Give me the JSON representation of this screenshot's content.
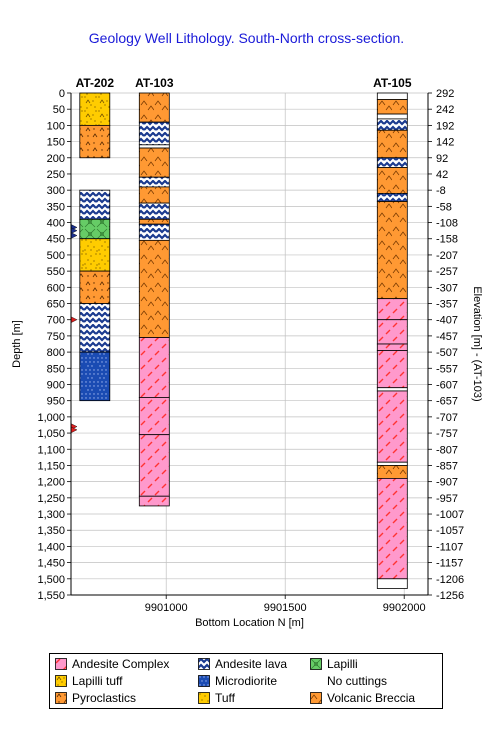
{
  "chart_data": {
    "type": "well-lithology-cross-section",
    "title": "Geology Well Lithology.  South-North cross-section.",
    "xlabel": "Bottom Location N [m]",
    "ylabel_left": "Depth [m]",
    "ylabel_right": "Elevation [m] - (AT-103)",
    "depth_range": [
      0,
      1550
    ],
    "depth_ticks": [
      "0",
      "50",
      "100",
      "150",
      "200",
      "250",
      "300",
      "350",
      "400",
      "450",
      "500",
      "550",
      "600",
      "650",
      "700",
      "750",
      "800",
      "850",
      "900",
      "950",
      "1,000",
      "1,050",
      "1,100",
      "1,150",
      "1,200",
      "1,250",
      "1,300",
      "1,350",
      "1,400",
      "1,450",
      "1,500",
      "1,550"
    ],
    "elevation_ticks": [
      "292",
      "242",
      "192",
      "142",
      "92",
      "42",
      "-8",
      "-58",
      "-108",
      "-158",
      "-207",
      "-257",
      "-307",
      "-357",
      "-407",
      "-457",
      "-507",
      "-557",
      "-607",
      "-657",
      "-707",
      "-757",
      "-807",
      "-857",
      "-907",
      "-957",
      "-1007",
      "-1057",
      "-1107",
      "-1157",
      "-1206",
      "-1256"
    ],
    "x_range": [
      9900600,
      9902100
    ],
    "x_ticks": [
      "9901000",
      "9901500",
      "9902000"
    ],
    "x_tick_values": [
      9901000,
      9901500,
      9902000
    ],
    "grid": true,
    "colors": {
      "andesite_complex": "#ff99cc",
      "andesite_complex_hatch": "#ff3333",
      "pyroclastics": "#ff9933",
      "volcanic_breccia": "#ff9933",
      "lapilli_tuff": "#ffcc00",
      "tuff": "#ffcc00",
      "andesite_lava": "#ffffff",
      "andesite_lava_pattern": "#1a3a8f",
      "microdiorite": "#1a4bb3",
      "lapilli": "#66cc66",
      "no_cuttings": "#ffffff",
      "title": "#1a1ad8",
      "grid": "#c0c0c0"
    },
    "wells": [
      {
        "name": "AT-202",
        "x": 9900700,
        "markers": [
          {
            "type": "triangle-blue",
            "depth": 415
          },
          {
            "type": "triangle-blue",
            "depth": 425
          },
          {
            "type": "triangle-blue",
            "depth": 440
          },
          {
            "type": "triangle-red",
            "depth": 700
          },
          {
            "type": "triangle-red",
            "depth": 1030
          },
          {
            "type": "triangle-red",
            "depth": 1040
          }
        ],
        "intervals": [
          {
            "top": 0,
            "bottom": 100,
            "lith": "lapilli_tuff"
          },
          {
            "top": 100,
            "bottom": 200,
            "lith": "pyroclastics"
          },
          {
            "top": 300,
            "bottom": 390,
            "lith": "andesite_lava"
          },
          {
            "top": 390,
            "bottom": 450,
            "lith": "lapilli"
          },
          {
            "top": 450,
            "bottom": 550,
            "lith": "tuff"
          },
          {
            "top": 550,
            "bottom": 650,
            "lith": "pyroclastics"
          },
          {
            "top": 650,
            "bottom": 800,
            "lith": "andesite_lava"
          },
          {
            "top": 800,
            "bottom": 950,
            "lith": "microdiorite"
          }
        ]
      },
      {
        "name": "AT-103",
        "x": 9900950,
        "markers": [],
        "intervals": [
          {
            "top": 0,
            "bottom": 90,
            "lith": "volcanic_breccia"
          },
          {
            "top": 90,
            "bottom": 160,
            "lith": "andesite_lava"
          },
          {
            "top": 160,
            "bottom": 170,
            "lith": "no_cuttings"
          },
          {
            "top": 170,
            "bottom": 260,
            "lith": "volcanic_breccia"
          },
          {
            "top": 260,
            "bottom": 290,
            "lith": "andesite_lava"
          },
          {
            "top": 290,
            "bottom": 340,
            "lith": "volcanic_breccia"
          },
          {
            "top": 340,
            "bottom": 390,
            "lith": "andesite_lava"
          },
          {
            "top": 390,
            "bottom": 405,
            "lith": "volcanic_breccia"
          },
          {
            "top": 405,
            "bottom": 455,
            "lith": "andesite_lava"
          },
          {
            "top": 455,
            "bottom": 755,
            "lith": "volcanic_breccia"
          },
          {
            "top": 755,
            "bottom": 940,
            "lith": "andesite_complex"
          },
          {
            "top": 940,
            "bottom": 1055,
            "lith": "andesite_complex"
          },
          {
            "top": 1055,
            "bottom": 1245,
            "lith": "andesite_complex"
          },
          {
            "top": 1245,
            "bottom": 1275,
            "lith": "andesite_complex"
          }
        ]
      },
      {
        "name": "AT-105",
        "x": 9901950,
        "markers": [],
        "intervals": [
          {
            "top": 0,
            "bottom": 20,
            "lith": "no_cuttings"
          },
          {
            "top": 20,
            "bottom": 65,
            "lith": "volcanic_breccia"
          },
          {
            "top": 65,
            "bottom": 80,
            "lith": "no_cuttings"
          },
          {
            "top": 80,
            "bottom": 115,
            "lith": "andesite_lava"
          },
          {
            "top": 115,
            "bottom": 200,
            "lith": "volcanic_breccia"
          },
          {
            "top": 200,
            "bottom": 230,
            "lith": "andesite_lava"
          },
          {
            "top": 230,
            "bottom": 310,
            "lith": "volcanic_breccia"
          },
          {
            "top": 310,
            "bottom": 335,
            "lith": "andesite_lava"
          },
          {
            "top": 335,
            "bottom": 635,
            "lith": "volcanic_breccia"
          },
          {
            "top": 635,
            "bottom": 700,
            "lith": "andesite_complex"
          },
          {
            "top": 700,
            "bottom": 775,
            "lith": "andesite_complex"
          },
          {
            "top": 775,
            "bottom": 795,
            "lith": "andesite_complex"
          },
          {
            "top": 795,
            "bottom": 910,
            "lith": "andesite_complex"
          },
          {
            "top": 910,
            "bottom": 920,
            "lith": "no_cuttings"
          },
          {
            "top": 920,
            "bottom": 1140,
            "lith": "andesite_complex"
          },
          {
            "top": 1140,
            "bottom": 1150,
            "lith": "no_cuttings"
          },
          {
            "top": 1150,
            "bottom": 1190,
            "lith": "volcanic_breccia"
          },
          {
            "top": 1190,
            "bottom": 1500,
            "lith": "andesite_complex"
          },
          {
            "top": 1500,
            "bottom": 1530,
            "lith": "no_cuttings"
          }
        ]
      }
    ],
    "legend": {
      "position": "bottom",
      "items": [
        {
          "label": "Andesite Complex",
          "lith": "andesite_complex"
        },
        {
          "label": "Andesite lava",
          "lith": "andesite_lava"
        },
        {
          "label": "Lapilli",
          "lith": "lapilli"
        },
        {
          "label": "Lapilli tuff",
          "lith": "lapilli_tuff"
        },
        {
          "label": "Microdiorite",
          "lith": "microdiorite"
        },
        {
          "label": "No cuttings",
          "lith": "no_cuttings"
        },
        {
          "label": "Pyroclastics",
          "lith": "pyroclastics"
        },
        {
          "label": "Tuff",
          "lith": "tuff"
        },
        {
          "label": "Volcanic Breccia",
          "lith": "volcanic_breccia"
        }
      ]
    }
  }
}
